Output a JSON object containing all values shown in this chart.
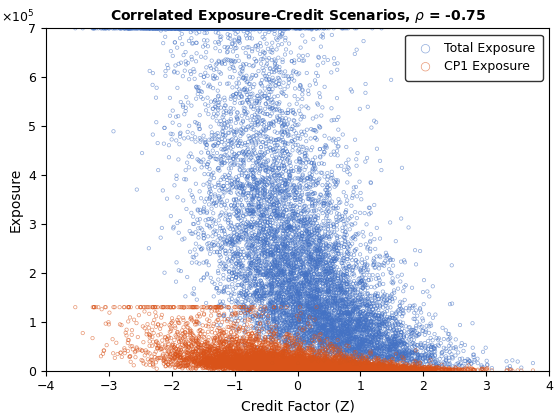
{
  "title": "Correlated Exposure-Credit Scenarios, ρ = -0.75",
  "xlabel": "Credit Factor (Z)",
  "ylabel": "Exposure",
  "xlim": [
    -4,
    4
  ],
  "ylim": [
    0,
    700000
  ],
  "rho": -0.75,
  "n_samples": 10000,
  "seed": 7,
  "color_total": "#4472C4",
  "color_cp1": "#D95319",
  "marker_size": 6,
  "legend_labels": [
    "Total Exposure",
    "CP1 Exposure"
  ],
  "ytick_max": 7
}
